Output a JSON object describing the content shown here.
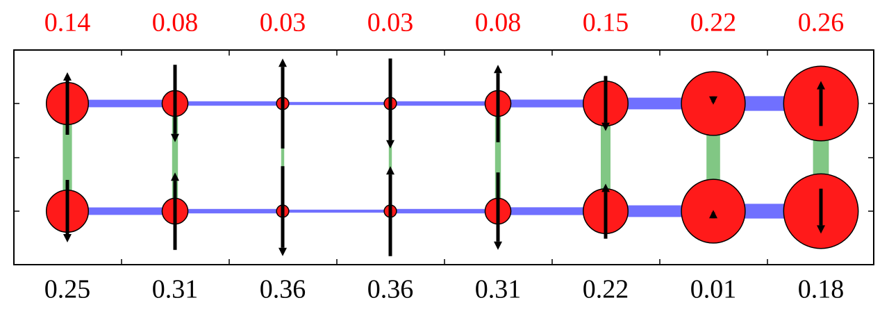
{
  "chart_data": {
    "type": "lattice",
    "top_values": [
      0.14,
      0.08,
      0.03,
      0.03,
      0.08,
      0.15,
      0.22,
      0.26
    ],
    "bottom_values": [
      0.25,
      0.31,
      0.36,
      0.36,
      0.31,
      0.22,
      0.01,
      0.18
    ],
    "top_color": "#ff0000",
    "bottom_color": "#000000",
    "circle_color": "#ff1a1a",
    "rung_color": "#4caf50",
    "rail_color": "#3333ff",
    "arrow_color": "#000000",
    "top_arrow_directions": [
      "up",
      "down",
      "up",
      "down",
      "up",
      "down",
      "down",
      "up"
    ],
    "bottom_arrow_directions": [
      "down",
      "up",
      "down",
      "up",
      "down",
      "up",
      "up",
      "down"
    ]
  }
}
